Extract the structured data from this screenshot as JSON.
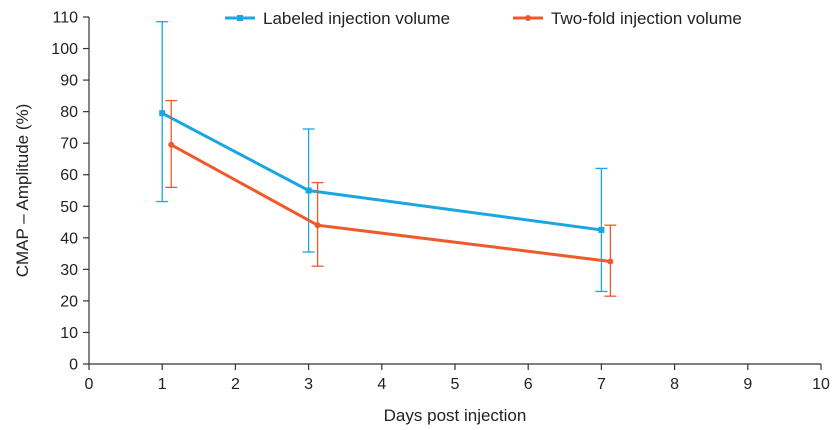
{
  "chart_data": {
    "type": "line",
    "xlabel": "Days post injection",
    "ylabel": "CMAP – Amplitude (%)",
    "xlim": [
      0,
      10
    ],
    "ylim": [
      0,
      110
    ],
    "x_ticks": [
      0,
      1,
      2,
      3,
      4,
      5,
      6,
      7,
      8,
      9,
      10
    ],
    "y_ticks": [
      0,
      10,
      20,
      30,
      40,
      50,
      60,
      70,
      80,
      90,
      100,
      110
    ],
    "grid": false,
    "legend_position": "top",
    "series": [
      {
        "name": "Labeled injection volume",
        "color": "#1aa6e0",
        "marker": "square",
        "x": [
          1,
          3,
          7
        ],
        "y": [
          79.5,
          55,
          42.5
        ],
        "err_low": [
          51.5,
          35.5,
          23
        ],
        "err_high": [
          108.5,
          74.5,
          62
        ]
      },
      {
        "name": "Two-fold injection volume",
        "color": "#ef5a2c",
        "marker": "circle",
        "x": [
          1,
          3,
          7
        ],
        "y": [
          69.5,
          44,
          32.5
        ],
        "err_low": [
          56,
          31,
          21.5
        ],
        "err_high": [
          83.5,
          57.5,
          44
        ]
      }
    ]
  }
}
